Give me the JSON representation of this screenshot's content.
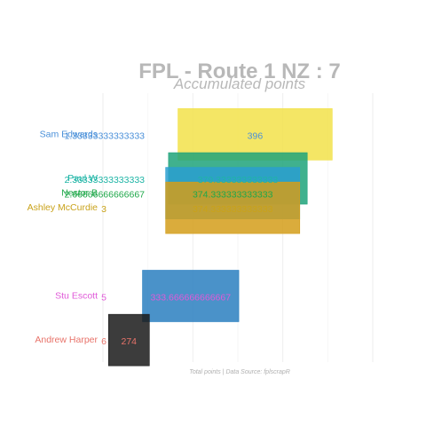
{
  "chart_data": {
    "type": "bar",
    "orientation": "horizontal",
    "title": "FPL - Route 1 NZ : 7",
    "subtitle": "Accumulated points",
    "caption": "Total points | Data Source: fplscrapR",
    "grid": true,
    "legend": "none",
    "xlim": [
      230,
      410
    ],
    "ylim": [
      0.4,
      6.5
    ],
    "series": [
      {
        "name": "Sam Edwards",
        "color": "#4a90d9",
        "fill": "#f2e24a",
        "rank": 1.33333333333333,
        "rank_label": "1.33333333333333",
        "value": 396,
        "value_label": "396"
      },
      {
        "name": "Paul W",
        "color": "#1fb5a6",
        "fill": "#1fa37a",
        "rank": 2.33333333333333,
        "rank_label": "2.33333333333333",
        "value": 379.333333333333,
        "value_label": "379.333333333333"
      },
      {
        "name": "Nestor B",
        "color": "#1fa84a",
        "fill": "#2a9fd0",
        "rank": 2.66666666666667,
        "rank_label": "2.66666666666667",
        "value": 374.333333333333,
        "value_label": "374.333333333333"
      },
      {
        "name": "Ashley McCurdie",
        "color": "#c9a21a",
        "fill": "#d49d1a",
        "rank": 3,
        "rank_label": "3",
        "value": 374.333333333333,
        "value_label": "374.333333333333"
      },
      {
        "name": "Stu Escott",
        "color": "#e05ad8",
        "fill": "#2a7fc0",
        "rank": 5,
        "rank_label": "5",
        "value": 333.666666666667,
        "value_label": "333.666666666667"
      },
      {
        "name": "Andrew Harper",
        "color": "#e8736a",
        "fill": "#1a1a1a",
        "rank": 6,
        "rank_label": "6",
        "value": 274,
        "value_label": "274"
      }
    ]
  }
}
